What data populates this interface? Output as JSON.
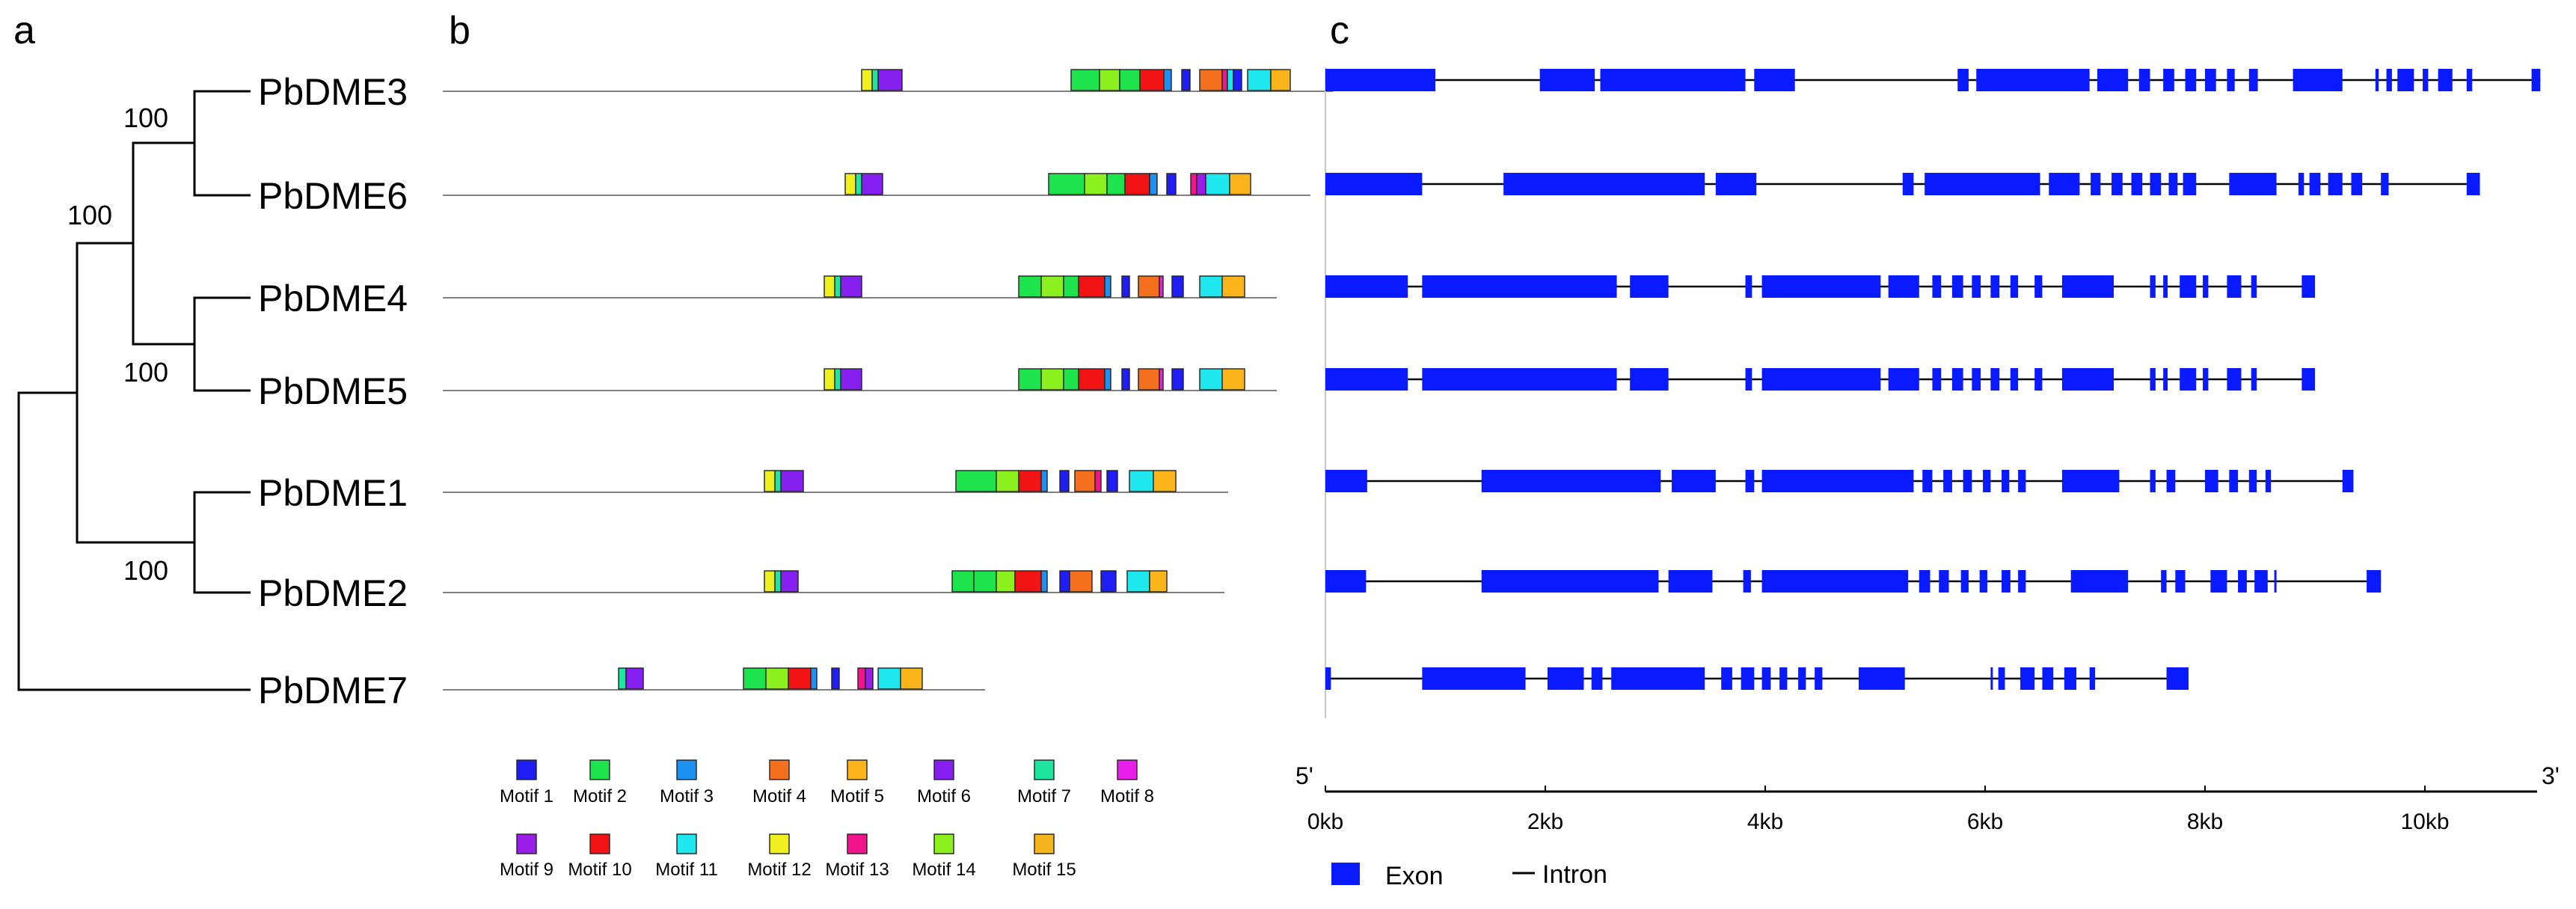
{
  "panels": {
    "a": "a",
    "b": "b",
    "c": "c"
  },
  "colors": {
    "exon": "#0a1aff",
    "tree": "#000000",
    "motif_line": "#808080",
    "intron": "#000000",
    "divider": "#c8c8c8"
  },
  "genes": [
    {
      "name": "PbDME3",
      "motif_length": 1190,
      "motifs": [
        {
          "m": 12,
          "s": 560,
          "e": 574
        },
        {
          "m": 7,
          "s": 574,
          "e": 582
        },
        {
          "m": 6,
          "s": 582,
          "e": 614
        },
        {
          "m": 2,
          "s": 840,
          "e": 878
        },
        {
          "m": 14,
          "s": 878,
          "e": 905
        },
        {
          "m": 2,
          "s": 905,
          "e": 932
        },
        {
          "m": 10,
          "s": 932,
          "e": 964
        },
        {
          "m": 3,
          "s": 964,
          "e": 974
        },
        {
          "m": 1,
          "s": 988,
          "e": 999
        },
        {
          "m": 4,
          "s": 1012,
          "e": 1042
        },
        {
          "m": 13,
          "s": 1042,
          "e": 1049
        },
        {
          "m": 11,
          "s": 1049,
          "e": 1057
        },
        {
          "m": 1,
          "s": 1057,
          "e": 1068
        },
        {
          "m": 11,
          "s": 1076,
          "e": 1107
        },
        {
          "m": 5,
          "s": 1107,
          "e": 1133
        }
      ],
      "structure": {
        "length": 11.05,
        "exons": [
          [
            0.0,
            1.0
          ],
          [
            1.95,
            2.45
          ],
          [
            2.5,
            3.82
          ],
          [
            3.9,
            4.27
          ],
          [
            5.75,
            5.85
          ],
          [
            5.92,
            6.95
          ],
          [
            7.02,
            7.3
          ],
          [
            7.4,
            7.5
          ],
          [
            7.62,
            7.72
          ],
          [
            7.82,
            7.92
          ],
          [
            8.0,
            8.1
          ],
          [
            8.2,
            8.27
          ],
          [
            8.4,
            8.48
          ],
          [
            8.8,
            9.25
          ],
          [
            9.55,
            9.58
          ],
          [
            9.65,
            9.7
          ],
          [
            9.75,
            9.9
          ],
          [
            9.98,
            10.03
          ],
          [
            10.12,
            10.25
          ],
          [
            10.38,
            10.43
          ],
          [
            10.97,
            11.05
          ]
        ]
      }
    },
    {
      "name": "PbDME6",
      "motif_length": 1160,
      "motifs": [
        {
          "m": 12,
          "s": 538,
          "e": 552
        },
        {
          "m": 7,
          "s": 552,
          "e": 560
        },
        {
          "m": 6,
          "s": 560,
          "e": 588
        },
        {
          "m": 2,
          "s": 810,
          "e": 858
        },
        {
          "m": 14,
          "s": 858,
          "e": 888
        },
        {
          "m": 2,
          "s": 888,
          "e": 912
        },
        {
          "m": 10,
          "s": 912,
          "e": 945
        },
        {
          "m": 3,
          "s": 945,
          "e": 955
        },
        {
          "m": 1,
          "s": 968,
          "e": 980
        },
        {
          "m": 13,
          "s": 1000,
          "e": 1008
        },
        {
          "m": 9,
          "s": 1008,
          "e": 1020
        },
        {
          "m": 11,
          "s": 1020,
          "e": 1052
        },
        {
          "m": 5,
          "s": 1052,
          "e": 1080
        }
      ],
      "structure": {
        "length": 10.5,
        "exons": [
          [
            0.0,
            0.88
          ],
          [
            1.62,
            3.45
          ],
          [
            3.55,
            3.92
          ],
          [
            5.25,
            5.35
          ],
          [
            5.45,
            6.5
          ],
          [
            6.58,
            6.86
          ],
          [
            6.96,
            7.05
          ],
          [
            7.15,
            7.25
          ],
          [
            7.33,
            7.43
          ],
          [
            7.5,
            7.6
          ],
          [
            7.67,
            7.75
          ],
          [
            7.8,
            7.92
          ],
          [
            8.22,
            8.65
          ],
          [
            8.85,
            8.9
          ],
          [
            8.95,
            9.05
          ],
          [
            9.12,
            9.25
          ],
          [
            9.33,
            9.43
          ],
          [
            9.6,
            9.67
          ],
          [
            10.38,
            10.5
          ]
        ]
      }
    },
    {
      "name": "PbDME4",
      "motif_length": 1115,
      "motifs": [
        {
          "m": 12,
          "s": 510,
          "e": 524
        },
        {
          "m": 7,
          "s": 524,
          "e": 532
        },
        {
          "m": 6,
          "s": 532,
          "e": 560
        },
        {
          "m": 2,
          "s": 770,
          "e": 800
        },
        {
          "m": 14,
          "s": 800,
          "e": 830
        },
        {
          "m": 2,
          "s": 830,
          "e": 850
        },
        {
          "m": 10,
          "s": 850,
          "e": 885
        },
        {
          "m": 3,
          "s": 885,
          "e": 893
        },
        {
          "m": 1,
          "s": 908,
          "e": 918
        },
        {
          "m": 4,
          "s": 930,
          "e": 958
        },
        {
          "m": 8,
          "s": 958,
          "e": 963
        },
        {
          "m": 1,
          "s": 975,
          "e": 990
        },
        {
          "m": 11,
          "s": 1012,
          "e": 1042
        },
        {
          "m": 5,
          "s": 1042,
          "e": 1072
        }
      ],
      "structure": {
        "length": 9.0,
        "exons": [
          [
            0.0,
            0.75
          ],
          [
            0.88,
            2.65
          ],
          [
            2.77,
            3.12
          ],
          [
            3.82,
            3.88
          ],
          [
            3.97,
            5.05
          ],
          [
            5.12,
            5.4
          ],
          [
            5.52,
            5.6
          ],
          [
            5.7,
            5.8
          ],
          [
            5.88,
            5.96
          ],
          [
            6.05,
            6.13
          ],
          [
            6.23,
            6.3
          ],
          [
            6.45,
            6.52
          ],
          [
            6.7,
            7.17
          ],
          [
            7.5,
            7.55
          ],
          [
            7.62,
            7.66
          ],
          [
            7.77,
            7.92
          ],
          [
            7.98,
            8.03
          ],
          [
            8.2,
            8.33
          ],
          [
            8.42,
            8.47
          ],
          [
            8.88,
            9.0
          ]
        ]
      }
    },
    {
      "name": "PbDME5",
      "motif_length": 1115,
      "motifs": [
        {
          "m": 12,
          "s": 510,
          "e": 524
        },
        {
          "m": 7,
          "s": 524,
          "e": 532
        },
        {
          "m": 6,
          "s": 532,
          "e": 560
        },
        {
          "m": 2,
          "s": 770,
          "e": 800
        },
        {
          "m": 14,
          "s": 800,
          "e": 830
        },
        {
          "m": 2,
          "s": 830,
          "e": 850
        },
        {
          "m": 10,
          "s": 850,
          "e": 885
        },
        {
          "m": 3,
          "s": 885,
          "e": 893
        },
        {
          "m": 1,
          "s": 908,
          "e": 918
        },
        {
          "m": 4,
          "s": 930,
          "e": 958
        },
        {
          "m": 8,
          "s": 958,
          "e": 963
        },
        {
          "m": 1,
          "s": 975,
          "e": 990
        },
        {
          "m": 11,
          "s": 1012,
          "e": 1042
        },
        {
          "m": 5,
          "s": 1042,
          "e": 1072
        }
      ],
      "structure": {
        "length": 9.0,
        "exons": [
          [
            0.0,
            0.75
          ],
          [
            0.88,
            2.65
          ],
          [
            2.77,
            3.12
          ],
          [
            3.82,
            3.88
          ],
          [
            3.97,
            5.05
          ],
          [
            5.12,
            5.4
          ],
          [
            5.52,
            5.6
          ],
          [
            5.7,
            5.8
          ],
          [
            5.88,
            5.96
          ],
          [
            6.05,
            6.13
          ],
          [
            6.23,
            6.3
          ],
          [
            6.45,
            6.52
          ],
          [
            6.7,
            7.17
          ],
          [
            7.5,
            7.55
          ],
          [
            7.62,
            7.66
          ],
          [
            7.77,
            7.92
          ],
          [
            7.98,
            8.03
          ],
          [
            8.2,
            8.33
          ],
          [
            8.42,
            8.47
          ],
          [
            8.88,
            9.0
          ]
        ]
      }
    },
    {
      "name": "PbDME1",
      "motif_length": 1050,
      "motifs": [
        {
          "m": 12,
          "s": 430,
          "e": 444
        },
        {
          "m": 7,
          "s": 444,
          "e": 452
        },
        {
          "m": 6,
          "s": 452,
          "e": 482
        },
        {
          "m": 2,
          "s": 686,
          "e": 740
        },
        {
          "m": 14,
          "s": 740,
          "e": 770
        },
        {
          "m": 10,
          "s": 770,
          "e": 800
        },
        {
          "m": 3,
          "s": 800,
          "e": 808
        },
        {
          "m": 1,
          "s": 825,
          "e": 837
        },
        {
          "m": 4,
          "s": 845,
          "e": 872
        },
        {
          "m": 13,
          "s": 872,
          "e": 880
        },
        {
          "m": 1,
          "s": 888,
          "e": 902
        },
        {
          "m": 11,
          "s": 918,
          "e": 950
        },
        {
          "m": 5,
          "s": 950,
          "e": 980
        }
      ],
      "structure": {
        "length": 9.35,
        "exons": [
          [
            0.0,
            0.38
          ],
          [
            1.42,
            3.05
          ],
          [
            3.15,
            3.55
          ],
          [
            3.82,
            3.9
          ],
          [
            3.97,
            5.35
          ],
          [
            5.43,
            5.52
          ],
          [
            5.62,
            5.7
          ],
          [
            5.8,
            5.88
          ],
          [
            5.98,
            6.05
          ],
          [
            6.15,
            6.22
          ],
          [
            6.3,
            6.37
          ],
          [
            6.7,
            7.22
          ],
          [
            7.5,
            7.55
          ],
          [
            7.65,
            7.73
          ],
          [
            8.0,
            8.12
          ],
          [
            8.22,
            8.3
          ],
          [
            8.4,
            8.47
          ],
          [
            8.55,
            8.6
          ],
          [
            9.25,
            9.35
          ]
        ]
      }
    },
    {
      "name": "PbDME2",
      "motif_length": 1045,
      "motifs": [
        {
          "m": 12,
          "s": 430,
          "e": 444
        },
        {
          "m": 7,
          "s": 444,
          "e": 452
        },
        {
          "m": 6,
          "s": 452,
          "e": 475
        },
        {
          "m": 2,
          "s": 681,
          "e": 710
        },
        {
          "m": 2,
          "s": 710,
          "e": 740
        },
        {
          "m": 14,
          "s": 740,
          "e": 765
        },
        {
          "m": 10,
          "s": 765,
          "e": 800
        },
        {
          "m": 3,
          "s": 800,
          "e": 808
        },
        {
          "m": 1,
          "s": 825,
          "e": 838
        },
        {
          "m": 4,
          "s": 838,
          "e": 868
        },
        {
          "m": 1,
          "s": 880,
          "e": 900
        },
        {
          "m": 11,
          "s": 915,
          "e": 945
        },
        {
          "m": 5,
          "s": 945,
          "e": 968
        }
      ],
      "structure": {
        "length": 9.6,
        "exons": [
          [
            0.0,
            0.37
          ],
          [
            1.42,
            3.03
          ],
          [
            3.12,
            3.52
          ],
          [
            3.8,
            3.87
          ],
          [
            3.97,
            5.3
          ],
          [
            5.4,
            5.5
          ],
          [
            5.58,
            5.67
          ],
          [
            5.78,
            5.85
          ],
          [
            5.95,
            6.02
          ],
          [
            6.15,
            6.23
          ],
          [
            6.3,
            6.37
          ],
          [
            6.78,
            7.3
          ],
          [
            7.6,
            7.65
          ],
          [
            7.73,
            7.82
          ],
          [
            8.05,
            8.2
          ],
          [
            8.3,
            8.38
          ],
          [
            8.45,
            8.57
          ],
          [
            8.63,
            8.65
          ],
          [
            9.47,
            9.6
          ]
        ]
      }
    },
    {
      "name": "PbDME7",
      "motif_length": 725,
      "motifs": [
        {
          "m": 7,
          "s": 235,
          "e": 245
        },
        {
          "m": 6,
          "s": 245,
          "e": 268
        },
        {
          "m": 2,
          "s": 402,
          "e": 432
        },
        {
          "m": 14,
          "s": 432,
          "e": 462
        },
        {
          "m": 10,
          "s": 462,
          "e": 492
        },
        {
          "m": 3,
          "s": 492,
          "e": 500
        },
        {
          "m": 1,
          "s": 520,
          "e": 530
        },
        {
          "m": 13,
          "s": 555,
          "e": 565
        },
        {
          "m": 9,
          "s": 565,
          "e": 575
        },
        {
          "m": 11,
          "s": 582,
          "e": 612
        },
        {
          "m": 5,
          "s": 612,
          "e": 641
        }
      ],
      "structure": {
        "length": 7.85,
        "exons": [
          [
            0.0,
            0.05
          ],
          [
            0.88,
            1.82
          ],
          [
            2.02,
            2.35
          ],
          [
            2.42,
            2.52
          ],
          [
            2.6,
            3.45
          ],
          [
            3.6,
            3.7
          ],
          [
            3.78,
            3.9
          ],
          [
            3.97,
            4.05
          ],
          [
            4.13,
            4.2
          ],
          [
            4.3,
            4.37
          ],
          [
            4.45,
            4.52
          ],
          [
            4.85,
            5.27
          ],
          [
            6.05,
            6.07
          ],
          [
            6.12,
            6.18
          ],
          [
            6.32,
            6.45
          ],
          [
            6.52,
            6.62
          ],
          [
            6.72,
            6.83
          ],
          [
            6.95,
            7.0
          ],
          [
            7.65,
            7.85
          ]
        ]
      }
    }
  ],
  "tree": {
    "bootstraps": [
      {
        "value": "100",
        "node": "dme3-dme6"
      },
      {
        "value": "100",
        "node": "dme3456"
      },
      {
        "value": "100",
        "node": "dme4-dme5"
      },
      {
        "value": "100",
        "node": "dme1-dme2"
      }
    ]
  },
  "motif_legend": [
    {
      "id": 1,
      "label": "Motif 1",
      "color": "#1e1ef5"
    },
    {
      "id": 2,
      "label": "Motif 2",
      "color": "#1de34c"
    },
    {
      "id": 3,
      "label": "Motif 3",
      "color": "#1e90f0"
    },
    {
      "id": 4,
      "label": "Motif 4",
      "color": "#f4701e"
    },
    {
      "id": 5,
      "label": "Motif 5",
      "color": "#fbb51b"
    },
    {
      "id": 6,
      "label": "Motif 6",
      "color": "#8620f0"
    },
    {
      "id": 7,
      "label": "Motif 7",
      "color": "#1ee5a0"
    },
    {
      "id": 8,
      "label": "Motif 8",
      "color": "#ea1eea"
    },
    {
      "id": 9,
      "label": "Motif 9",
      "color": "#9b1ee8"
    },
    {
      "id": 10,
      "label": "Motif 10",
      "color": "#f21414"
    },
    {
      "id": 11,
      "label": "Motif 11",
      "color": "#1ee8ee"
    },
    {
      "id": 12,
      "label": "Motif 12",
      "color": "#f0f01e"
    },
    {
      "id": 13,
      "label": "Motif 13",
      "color": "#f2148c"
    },
    {
      "id": 14,
      "label": "Motif 14",
      "color": "#8cf01e"
    },
    {
      "id": 15,
      "label": "Motif 15",
      "color": "#f6b41e"
    }
  ],
  "axis": {
    "five_prime": "5'",
    "three_prime": "3'",
    "max_kb": 11,
    "ticks": [
      {
        "value": 0,
        "label": "0kb"
      },
      {
        "value": 2,
        "label": "2kb"
      },
      {
        "value": 4,
        "label": "4kb"
      },
      {
        "value": 6,
        "label": "6kb"
      },
      {
        "value": 8,
        "label": "8kb"
      },
      {
        "value": 10,
        "label": "10kb"
      }
    ]
  },
  "gene_legend": {
    "exon": "Exon",
    "intron": "Intron"
  }
}
